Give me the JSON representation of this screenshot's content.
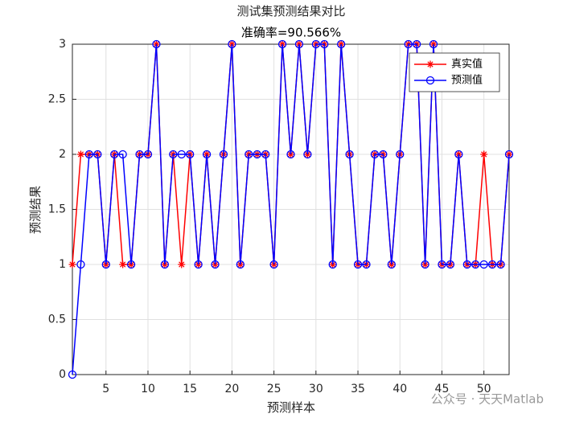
{
  "chart_data": {
    "type": "line",
    "title": "测试集预测结果对比",
    "subtitle": "准确率=90.566%",
    "x_label": "预测样本",
    "y_label": "预测结果",
    "x": [
      1,
      2,
      3,
      4,
      5,
      6,
      7,
      8,
      9,
      10,
      11,
      12,
      13,
      14,
      15,
      16,
      17,
      18,
      19,
      20,
      21,
      22,
      23,
      24,
      25,
      26,
      27,
      28,
      29,
      30,
      31,
      32,
      33,
      34,
      35,
      36,
      37,
      38,
      39,
      40,
      41,
      42,
      43,
      44,
      45,
      46,
      47,
      48,
      49,
      50,
      51,
      52,
      53
    ],
    "series": [
      {
        "name": "真实值",
        "color": "#ff0000",
        "marker": "asterisk",
        "values": [
          1,
          2,
          2,
          2,
          1,
          2,
          1,
          1,
          2,
          2,
          3,
          1,
          2,
          1,
          2,
          1,
          2,
          1,
          2,
          3,
          1,
          2,
          2,
          2,
          1,
          3,
          2,
          3,
          2,
          3,
          3,
          1,
          3,
          2,
          1,
          1,
          2,
          2,
          1,
          2,
          3,
          3,
          1,
          3,
          1,
          1,
          2,
          1,
          1,
          2,
          1,
          1,
          2
        ]
      },
      {
        "name": "预测值",
        "color": "#0000ff",
        "marker": "circle",
        "values": [
          0,
          1,
          2,
          2,
          1,
          2,
          2,
          1,
          2,
          2,
          3,
          1,
          2,
          2,
          2,
          1,
          2,
          1,
          2,
          3,
          1,
          2,
          2,
          2,
          1,
          3,
          2,
          3,
          2,
          3,
          3,
          1,
          3,
          2,
          1,
          1,
          2,
          2,
          1,
          2,
          3,
          3,
          1,
          3,
          1,
          1,
          2,
          1,
          1,
          1,
          1,
          1,
          2
        ]
      }
    ],
    "xlim": [
      1,
      53
    ],
    "ylim": [
      0,
      3
    ],
    "xticks": [
      5,
      10,
      15,
      20,
      25,
      30,
      35,
      40,
      45,
      50
    ],
    "yticks": [
      0,
      0.5,
      1,
      1.5,
      2,
      2.5,
      3
    ],
    "grid": true,
    "legend": "upper-right"
  },
  "watermark": "公众号 · 天天Matlab"
}
